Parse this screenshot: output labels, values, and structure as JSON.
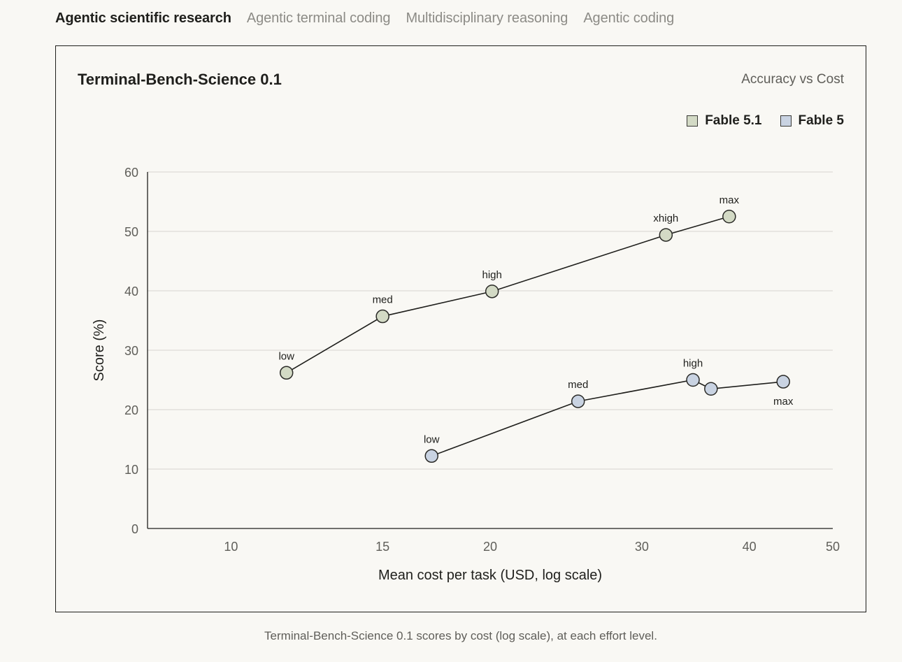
{
  "tabs": [
    {
      "label": "Agentic scientific research",
      "active": true
    },
    {
      "label": "Agentic terminal coding",
      "active": false
    },
    {
      "label": "Multidisciplinary reasoning",
      "active": false
    },
    {
      "label": "Agentic coding",
      "active": false
    }
  ],
  "caption": "Terminal-Bench-Science 0.1 scores by cost (log scale), at each effort level.",
  "chart_data": {
    "type": "line",
    "title": "Terminal-Bench-Science 0.1",
    "subtitle": "Accuracy vs Cost",
    "xlabel": "Mean cost per task (USD, log scale)",
    "ylabel": "Score (%)",
    "x_scale": "log",
    "xlim": [
      8,
      50
    ],
    "ylim": [
      0,
      60
    ],
    "x_ticks": [
      10,
      15,
      20,
      30,
      40,
      50
    ],
    "y_ticks": [
      0,
      10,
      20,
      30,
      40,
      50,
      60
    ],
    "grid": "horizontal",
    "legend_position": "top-right",
    "series": [
      {
        "name": "Fable 5.1",
        "color": "#d3dac5",
        "points": [
          {
            "x": 11.6,
            "y": 26.2,
            "label": "low"
          },
          {
            "x": 15.0,
            "y": 35.7,
            "label": "med"
          },
          {
            "x": 20.1,
            "y": 39.9,
            "label": "high"
          },
          {
            "x": 32.0,
            "y": 49.4,
            "label": "xhigh"
          },
          {
            "x": 37.9,
            "y": 52.5,
            "label": "max"
          }
        ]
      },
      {
        "name": "Fable 5",
        "color": "#c9d3e2",
        "points": [
          {
            "x": 17.1,
            "y": 12.2,
            "label": "low"
          },
          {
            "x": 25.3,
            "y": 21.4,
            "label": "med"
          },
          {
            "x": 34.4,
            "y": 25.0,
            "label": "high"
          },
          {
            "x": 36.1,
            "y": 23.5,
            "label": ""
          },
          {
            "x": 43.8,
            "y": 24.7,
            "label": "max"
          }
        ]
      }
    ]
  }
}
